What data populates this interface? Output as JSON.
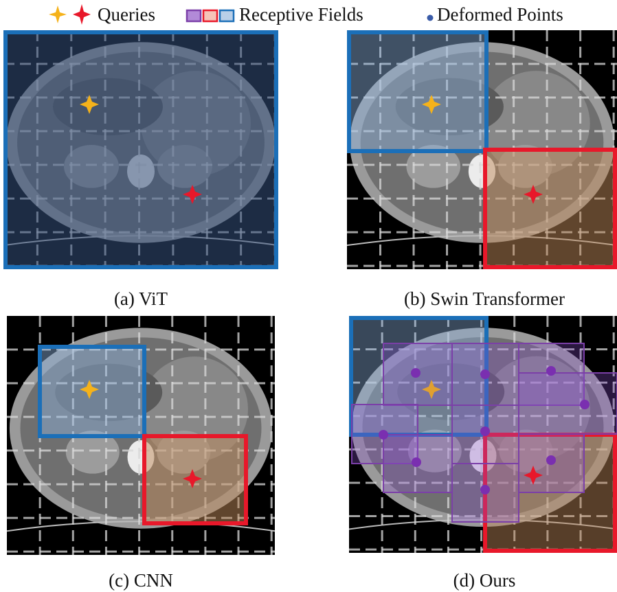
{
  "legend": {
    "queries": "Queries",
    "receptive_fields": "Receptive Fields",
    "deformed_points": "Deformed Points"
  },
  "panels": [
    {
      "caption": "(a) ViT"
    },
    {
      "caption": "(b) Swin Transformer"
    },
    {
      "caption": "(c) CNN"
    },
    {
      "caption": "(d) Ours"
    }
  ]
}
